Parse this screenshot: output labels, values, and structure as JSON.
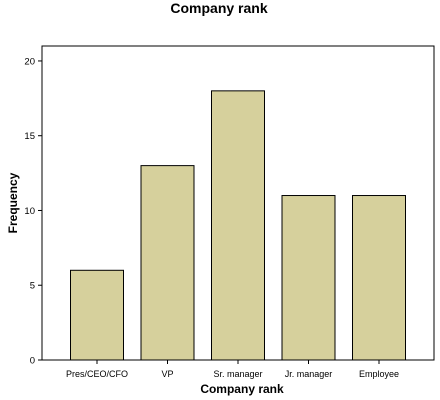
{
  "chart_data": {
    "type": "bar",
    "title": "Company rank",
    "xlabel": "Company rank",
    "ylabel": "Frequency",
    "categories": [
      "Pres/CEO/CFO",
      "VP",
      "Sr. manager",
      "Jr. manager",
      "Employee"
    ],
    "values": [
      6,
      13,
      18,
      11,
      11
    ],
    "ylim": [
      0,
      21
    ],
    "yticks": [
      0,
      5,
      10,
      15,
      20
    ],
    "grid": false,
    "legend": "none",
    "colors": {
      "bar_fill": "#d6d09c",
      "bar_stroke": "#000000",
      "background": "#ffffff"
    }
  }
}
